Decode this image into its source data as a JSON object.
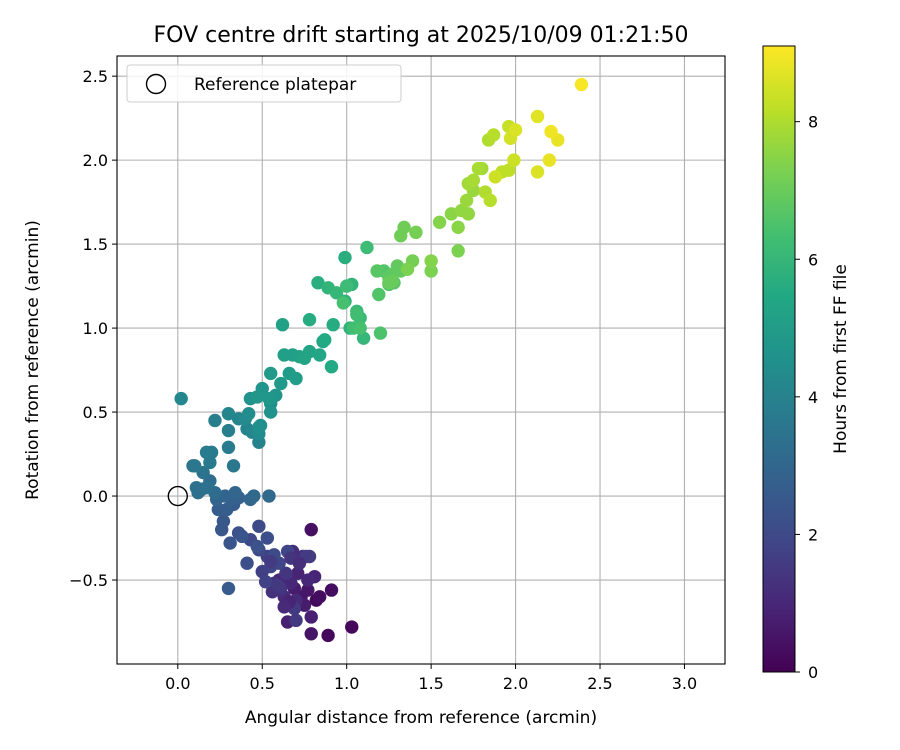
{
  "chart_data": {
    "type": "scatter",
    "title": "FOV centre drift starting at 2025/10/09 01:21:50",
    "xlabel": "Angular distance from reference (arcmin)",
    "ylabel": "Rotation from reference (arcmin)",
    "xlim": [
      -0.36,
      3.24
    ],
    "ylim": [
      -1.0,
      2.62
    ],
    "xticks": [
      0.0,
      0.5,
      1.0,
      1.5,
      2.0,
      2.5,
      3.0
    ],
    "xtick_labels": [
      "0.0",
      "0.5",
      "1.0",
      "1.5",
      "2.0",
      "2.5",
      "3.0"
    ],
    "yticks": [
      -0.5,
      0.0,
      0.5,
      1.0,
      1.5,
      2.0,
      2.5
    ],
    "ytick_labels": [
      "−0.5",
      "0.0",
      "0.5",
      "1.0",
      "1.5",
      "2.0",
      "2.5"
    ],
    "grid": true,
    "legend": {
      "position": "top-left",
      "entries": [
        "Reference platepar"
      ]
    },
    "reference_point": {
      "x": 0.0,
      "y": 0.0
    },
    "colorbar": {
      "label": "Hours from first FF file",
      "range": [
        0,
        9.1
      ],
      "ticks": [
        0,
        2,
        4,
        6,
        8
      ],
      "tick_labels": [
        "0",
        "2",
        "4",
        "6",
        "8"
      ],
      "colormap": "viridis"
    },
    "points": [
      [
        0.82,
        -0.62,
        0.2
      ],
      [
        0.89,
        -0.83,
        0.2
      ],
      [
        1.03,
        -0.78,
        0.2
      ],
      [
        0.91,
        -0.56,
        0.3
      ],
      [
        0.84,
        -0.6,
        0.3
      ],
      [
        0.79,
        -0.2,
        0.4
      ],
      [
        0.79,
        -0.82,
        0.5
      ],
      [
        0.77,
        -0.56,
        0.6
      ],
      [
        0.73,
        -0.6,
        0.6
      ],
      [
        0.69,
        -0.55,
        0.7
      ],
      [
        0.75,
        -0.65,
        0.7
      ],
      [
        0.79,
        -0.72,
        0.8
      ],
      [
        0.65,
        -0.75,
        0.8
      ],
      [
        0.81,
        -0.48,
        0.9
      ],
      [
        0.71,
        -0.46,
        0.9
      ],
      [
        0.67,
        -0.52,
        1.0
      ],
      [
        0.6,
        -0.5,
        1.0
      ],
      [
        0.63,
        -0.6,
        1.1
      ],
      [
        0.7,
        -0.62,
        1.1
      ],
      [
        0.74,
        -0.36,
        1.2
      ],
      [
        0.68,
        -0.33,
        1.2
      ],
      [
        0.57,
        -0.52,
        1.3
      ],
      [
        0.56,
        -0.57,
        1.3
      ],
      [
        0.61,
        -0.55,
        1.4
      ],
      [
        0.64,
        -0.46,
        1.4
      ],
      [
        0.7,
        -0.74,
        1.5
      ],
      [
        0.69,
        -0.67,
        1.5
      ],
      [
        0.78,
        -0.36,
        1.6
      ],
      [
        0.76,
        -0.36,
        1.6
      ],
      [
        0.5,
        -0.45,
        1.7
      ],
      [
        0.53,
        -0.36,
        1.7
      ],
      [
        0.52,
        -0.51,
        1.8
      ],
      [
        0.55,
        -0.42,
        1.8
      ],
      [
        0.6,
        -0.4,
        1.9
      ],
      [
        0.65,
        -0.33,
        1.9
      ],
      [
        0.48,
        -0.32,
        2.0
      ],
      [
        0.43,
        -0.26,
        2.0
      ],
      [
        0.48,
        -0.18,
        2.1
      ],
      [
        0.57,
        -0.35,
        2.1
      ],
      [
        0.53,
        -0.25,
        2.2
      ],
      [
        0.41,
        -0.4,
        2.2
      ],
      [
        0.47,
        -0.3,
        2.3
      ],
      [
        0.36,
        -0.22,
        2.3
      ],
      [
        0.38,
        -0.24,
        2.4
      ],
      [
        0.31,
        -0.28,
        2.4
      ],
      [
        0.26,
        -0.2,
        2.5
      ],
      [
        0.27,
        -0.15,
        2.5
      ],
      [
        0.3,
        -0.55,
        2.6
      ],
      [
        0.33,
        -0.05,
        2.6
      ],
      [
        0.29,
        -0.08,
        2.7
      ],
      [
        0.24,
        -0.08,
        2.7
      ],
      [
        0.36,
        -0.01,
        2.8
      ],
      [
        0.32,
        -0.02,
        2.8
      ],
      [
        0.23,
        -0.02,
        2.9
      ],
      [
        0.28,
        0.0,
        2.9
      ],
      [
        0.43,
        -0.02,
        3.0
      ],
      [
        0.34,
        0.02,
        3.0
      ],
      [
        0.45,
        0.0,
        3.1
      ],
      [
        0.54,
        0.0,
        3.1
      ],
      [
        0.22,
        0.02,
        3.2
      ],
      [
        0.19,
        0.09,
        3.2
      ],
      [
        0.14,
        0.04,
        3.3
      ],
      [
        0.12,
        0.02,
        3.3
      ],
      [
        0.11,
        0.05,
        3.4
      ],
      [
        0.17,
        0.05,
        3.4
      ],
      [
        0.09,
        0.18,
        3.5
      ],
      [
        0.15,
        0.14,
        3.5
      ],
      [
        0.33,
        0.18,
        3.6
      ],
      [
        0.1,
        0.18,
        3.6
      ],
      [
        0.19,
        0.2,
        3.7
      ],
      [
        0.2,
        0.26,
        3.7
      ],
      [
        0.17,
        0.26,
        3.8
      ],
      [
        0.3,
        0.29,
        3.8
      ],
      [
        0.3,
        0.39,
        3.9
      ],
      [
        0.22,
        0.45,
        3.9
      ],
      [
        0.41,
        0.4,
        4.0
      ],
      [
        0.48,
        0.32,
        4.0
      ],
      [
        0.36,
        0.46,
        4.1
      ],
      [
        0.3,
        0.49,
        4.1
      ],
      [
        0.02,
        0.58,
        4.2
      ],
      [
        0.44,
        0.38,
        4.2
      ],
      [
        0.4,
        0.46,
        4.3
      ],
      [
        0.48,
        0.37,
        4.3
      ],
      [
        0.49,
        0.42,
        4.4
      ],
      [
        0.42,
        0.49,
        4.4
      ],
      [
        0.48,
        0.41,
        4.5
      ],
      [
        0.55,
        0.55,
        4.5
      ],
      [
        0.55,
        0.5,
        4.6
      ],
      [
        0.43,
        0.58,
        4.6
      ],
      [
        0.5,
        0.64,
        4.7
      ],
      [
        0.58,
        0.6,
        4.7
      ],
      [
        0.47,
        0.59,
        4.8
      ],
      [
        0.54,
        0.58,
        4.8
      ],
      [
        0.55,
        0.73,
        4.9
      ],
      [
        0.61,
        0.67,
        4.9
      ],
      [
        0.66,
        0.73,
        5.0
      ],
      [
        0.7,
        0.7,
        5.0
      ],
      [
        0.68,
        0.84,
        5.1
      ],
      [
        0.63,
        0.84,
        5.1
      ],
      [
        0.72,
        0.83,
        5.2
      ],
      [
        0.62,
        1.02,
        5.2
      ],
      [
        0.78,
        0.86,
        5.3
      ],
      [
        0.75,
        0.82,
        5.3
      ],
      [
        0.84,
        0.84,
        5.4
      ],
      [
        0.86,
        0.92,
        5.4
      ],
      [
        0.87,
        0.93,
        5.5
      ],
      [
        0.91,
        0.77,
        5.5
      ],
      [
        0.92,
        1.02,
        5.6
      ],
      [
        0.78,
        1.05,
        5.6
      ],
      [
        0.83,
        1.27,
        5.7
      ],
      [
        0.99,
        1.42,
        5.7
      ],
      [
        1.02,
        1.0,
        5.8
      ],
      [
        0.99,
        1.16,
        5.8
      ],
      [
        1.03,
        1.26,
        5.9
      ],
      [
        0.89,
        1.24,
        5.9
      ],
      [
        0.94,
        1.21,
        6.0
      ],
      [
        1.1,
        0.94,
        6.0
      ],
      [
        1.08,
        1.06,
        6.1
      ],
      [
        1.06,
        1.1,
        6.1
      ],
      [
        1.12,
        1.48,
        6.2
      ],
      [
        1.0,
        1.25,
        6.2
      ],
      [
        1.04,
        1.0,
        6.3
      ],
      [
        1.06,
        1.08,
        6.3
      ],
      [
        1.08,
        1.0,
        6.4
      ],
      [
        0.98,
        1.15,
        6.4
      ],
      [
        1.2,
        0.97,
        6.5
      ],
      [
        1.25,
        1.26,
        6.5
      ],
      [
        1.19,
        1.2,
        6.6
      ],
      [
        1.22,
        1.34,
        6.6
      ],
      [
        1.28,
        1.27,
        6.7
      ],
      [
        1.18,
        1.34,
        6.7
      ],
      [
        1.25,
        1.3,
        6.8
      ],
      [
        1.27,
        1.32,
        6.8
      ],
      [
        1.32,
        1.34,
        6.9
      ],
      [
        1.3,
        1.37,
        6.9
      ],
      [
        1.27,
        1.28,
        7.0
      ],
      [
        1.25,
        1.27,
        7.0
      ],
      [
        1.34,
        1.6,
        7.1
      ],
      [
        1.32,
        1.55,
        7.1
      ],
      [
        1.39,
        1.4,
        7.2
      ],
      [
        1.41,
        1.57,
        7.2
      ],
      [
        1.36,
        1.35,
        7.3
      ],
      [
        1.5,
        1.34,
        7.3
      ],
      [
        1.55,
        1.63,
        7.4
      ],
      [
        1.5,
        1.4,
        7.4
      ],
      [
        1.62,
        1.68,
        7.5
      ],
      [
        1.66,
        1.6,
        7.5
      ],
      [
        1.72,
        1.68,
        7.6
      ],
      [
        1.68,
        1.7,
        7.6
      ],
      [
        1.71,
        1.76,
        7.7
      ],
      [
        1.75,
        1.82,
        7.7
      ],
      [
        1.72,
        1.86,
        7.8
      ],
      [
        1.8,
        1.95,
        7.8
      ],
      [
        1.78,
        1.95,
        7.9
      ],
      [
        1.75,
        1.88,
        7.9
      ],
      [
        1.82,
        1.81,
        8.0
      ],
      [
        1.84,
        2.12,
        8.0
      ],
      [
        1.87,
        2.15,
        8.1
      ],
      [
        1.85,
        1.76,
        8.1
      ],
      [
        1.92,
        1.93,
        8.2
      ],
      [
        1.96,
        1.94,
        8.2
      ],
      [
        1.96,
        2.2,
        8.3
      ],
      [
        1.99,
        2.0,
        8.4
      ],
      [
        1.88,
        1.9,
        8.4
      ],
      [
        1.97,
        2.13,
        8.5
      ],
      [
        2.0,
        2.18,
        8.6
      ],
      [
        2.13,
        1.93,
        8.6
      ],
      [
        2.13,
        2.26,
        8.7
      ],
      [
        2.2,
        2.0,
        8.8
      ],
      [
        2.25,
        2.12,
        8.8
      ],
      [
        2.21,
        2.17,
        8.9
      ],
      [
        2.39,
        2.45,
        9.0
      ],
      [
        1.66,
        1.46,
        7.3
      ],
      [
        0.67,
        -0.37,
        1.4
      ],
      [
        0.77,
        -0.5,
        1.0
      ],
      [
        0.72,
        -0.4,
        1.2
      ],
      [
        0.66,
        -0.63,
        0.9
      ],
      [
        0.59,
        -0.53,
        1.5
      ],
      [
        0.55,
        -0.39,
        1.6
      ],
      [
        0.63,
        -0.66,
        1.1
      ]
    ]
  }
}
